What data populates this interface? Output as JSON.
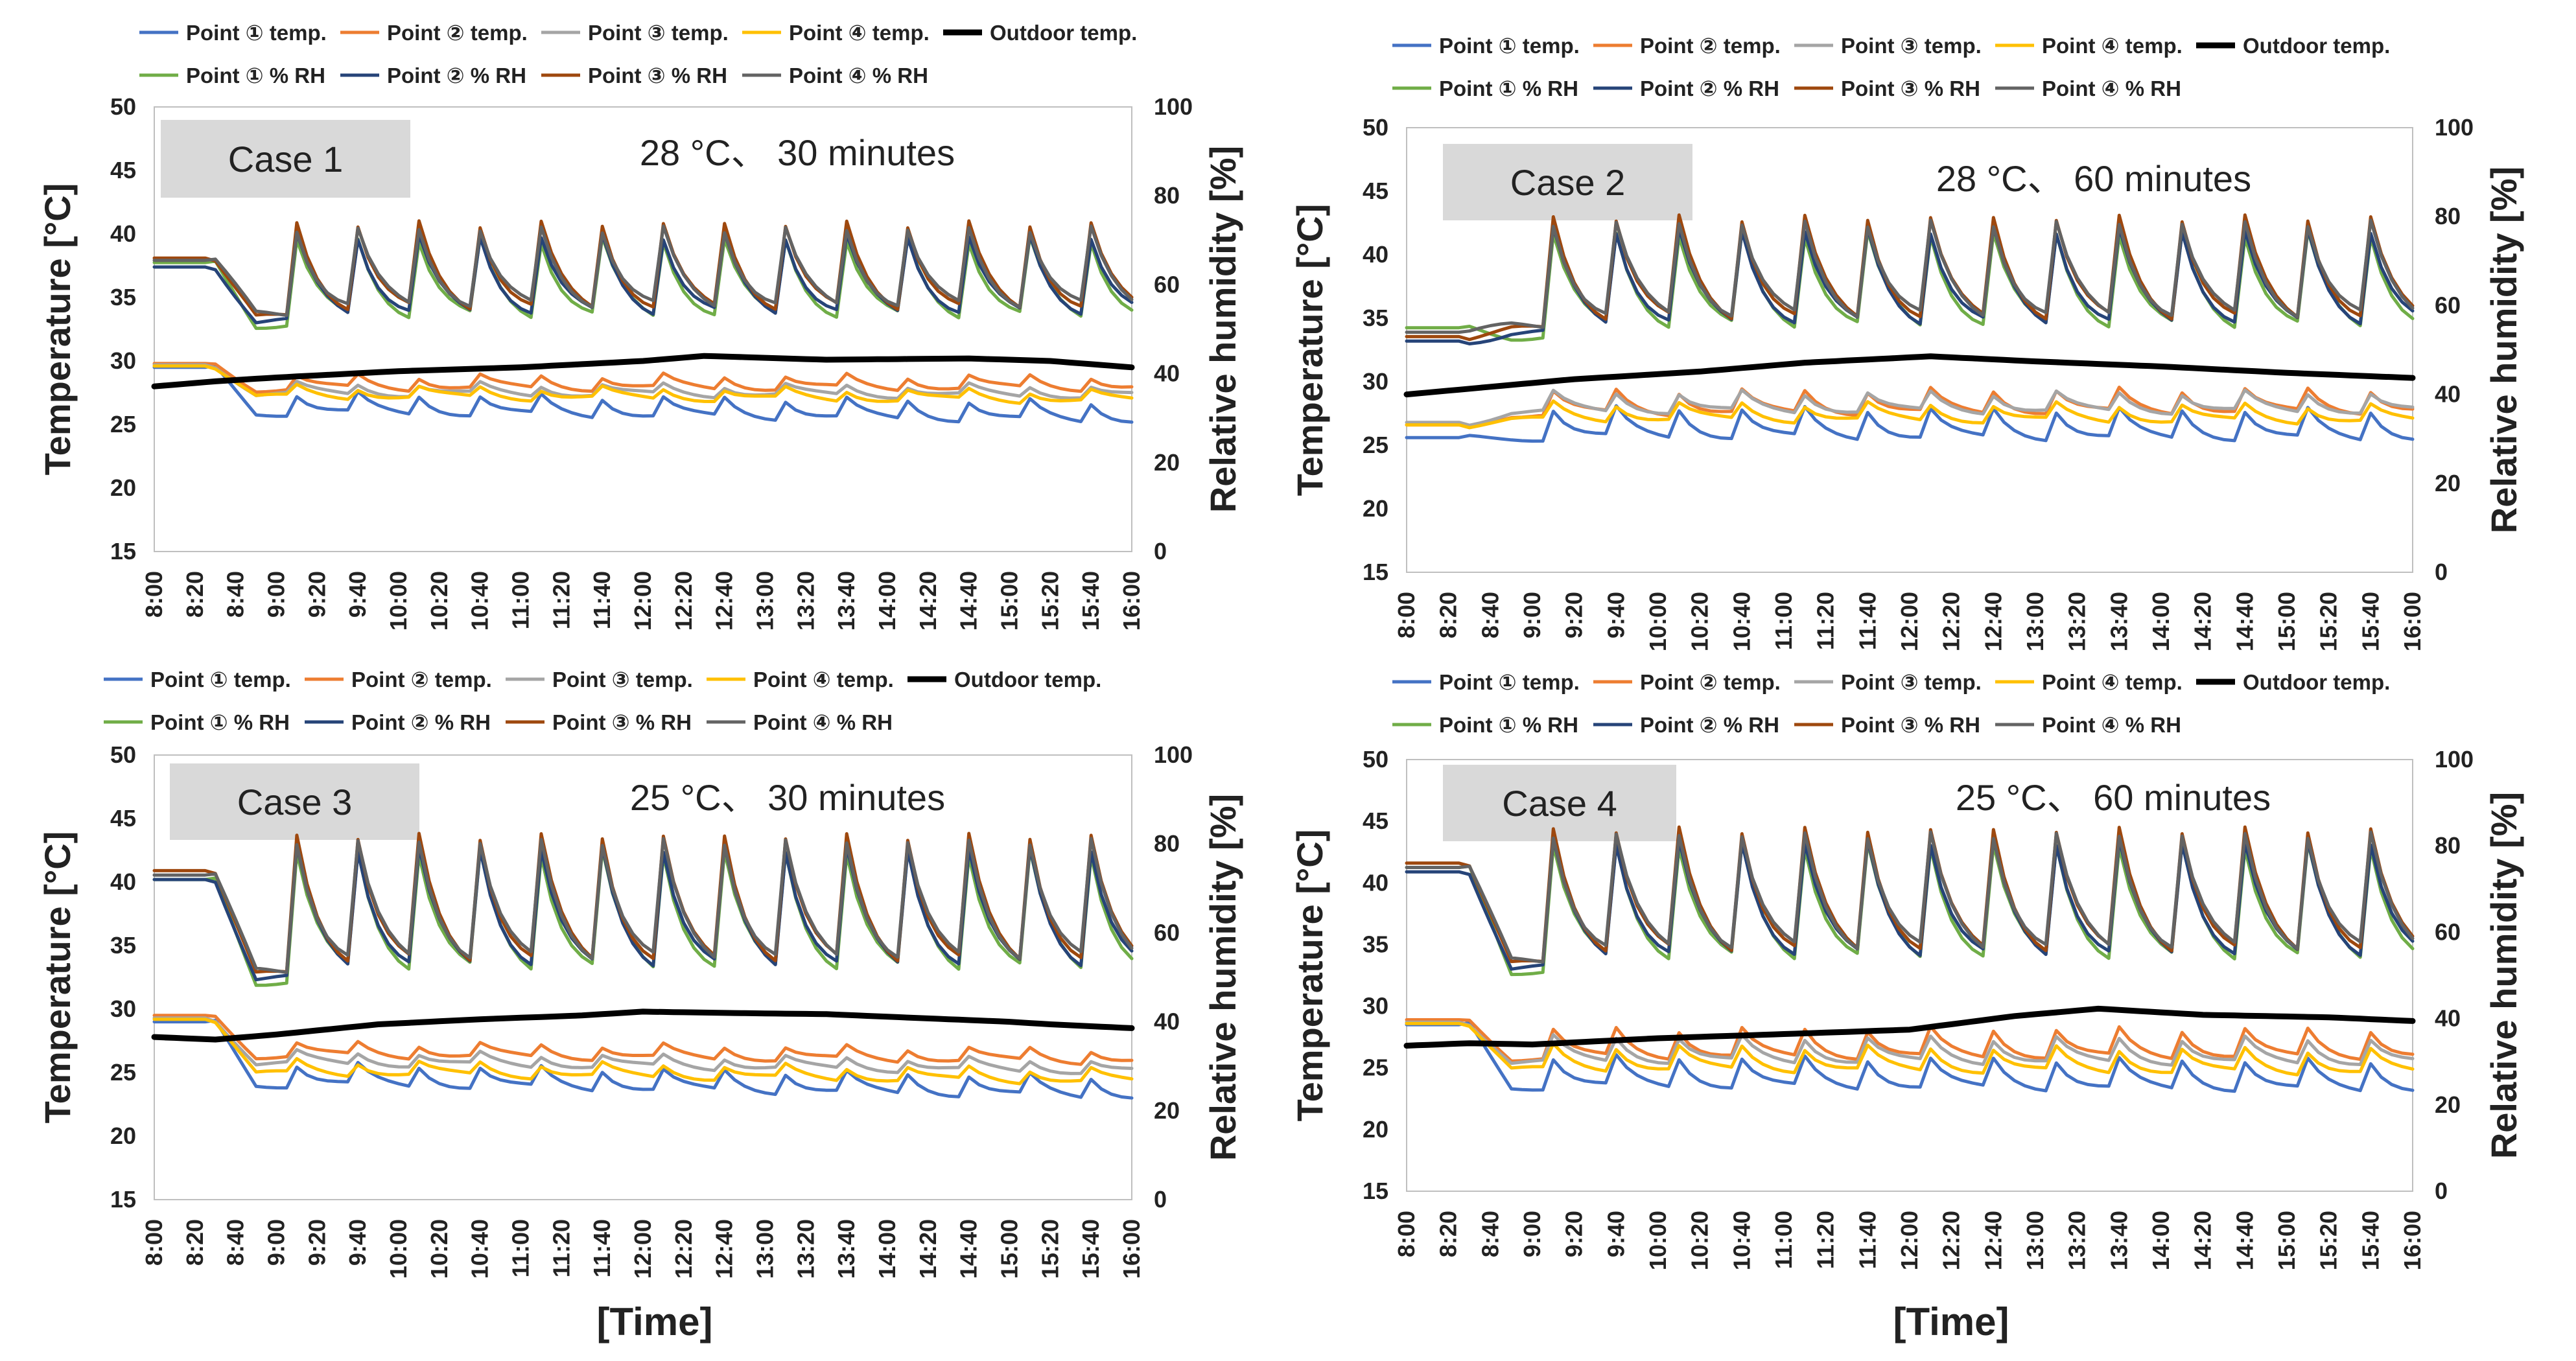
{
  "figure": {
    "shared_xlabel": "[Time]"
  },
  "legend_labels": {
    "p1_temp": "Point ① temp.",
    "p2_temp": "Point ② temp.",
    "p3_temp": "Point ③ temp.",
    "p4_temp": "Point ④ temp.",
    "outdoor": "Outdoor temp.",
    "p1_rh": "Point ① % RH",
    "p2_rh": "Point ② % RH",
    "p3_rh": "Point ③ % RH",
    "p4_rh": "Point ④ % RH"
  },
  "series_colors": {
    "p1_temp": "#4472C4",
    "p2_temp": "#ED7D31",
    "p3_temp": "#A5A5A5",
    "p4_temp": "#FFC000",
    "outdoor": "#000000",
    "p1_rh": "#70AD47",
    "p2_rh": "#264478",
    "p3_rh": "#9E480E",
    "p4_rh": "#636363"
  },
  "chart_data": [
    {
      "type": "line",
      "case_label": "Case 1",
      "condition": "28 °C、 30 minutes",
      "ylabel": "Temperature [°C]",
      "y2label": "Relative humidity [%]",
      "ylim": [
        15,
        50
      ],
      "y2lim": [
        0,
        100
      ],
      "yticks": [
        15,
        20,
        25,
        30,
        35,
        40,
        45,
        50
      ],
      "y2ticks": [
        0,
        20,
        40,
        60,
        80,
        100
      ],
      "xticks": [
        "8:00",
        "8:20",
        "8:40",
        "9:00",
        "9:20",
        "9:40",
        "10:00",
        "10:20",
        "10:40",
        "11:00",
        "11:20",
        "11:40",
        "12:00",
        "12:20",
        "12:40",
        "13:00",
        "13:20",
        "13:40",
        "14:00",
        "14:20",
        "14:40",
        "15:00",
        "15:20",
        "15:40",
        "16:00"
      ],
      "heating": {
        "base_temps": [
          26.0,
          27.8,
          27.4,
          27.2
        ],
        "peak_offsets": [
          1.5,
          1.0,
          0.8,
          0.8
        ],
        "late_temp_shift": [
          -0.8,
          0.0,
          -0.2,
          -0.4
        ],
        "rh_base": 51,
        "rh_peak": 70,
        "peak_spacing_min": 30,
        "first_peak_min": 70
      },
      "series": [
        {
          "name": "Outdoor temp.",
          "axis": "temp",
          "anchors": [
            [
              0,
              28.0
            ],
            [
              30,
              28.4
            ],
            [
              60,
              28.7
            ],
            [
              120,
              29.2
            ],
            [
              180,
              29.5
            ],
            [
              240,
              30.0
            ],
            [
              270,
              30.4
            ],
            [
              330,
              30.1
            ],
            [
              400,
              30.2
            ],
            [
              440,
              30.0
            ],
            [
              480,
              29.5
            ]
          ]
        },
        {
          "name": "Point ① temp.",
          "axis": "temp",
          "start": 29.5
        },
        {
          "name": "Point ② temp.",
          "axis": "temp",
          "start": 29.8
        },
        {
          "name": "Point ③ temp.",
          "axis": "temp",
          "start": 29.7
        },
        {
          "name": "Point ④ temp.",
          "axis": "temp",
          "start": 29.6
        },
        {
          "name": "Point ① % RH",
          "axis": "rh",
          "start": 65
        },
        {
          "name": "Point ② % RH",
          "axis": "rh",
          "start": 64
        },
        {
          "name": "Point ③ % RH",
          "axis": "rh",
          "start": 66
        },
        {
          "name": "Point ④ % RH",
          "axis": "rh",
          "start": 65.5
        }
      ]
    },
    {
      "type": "line",
      "case_label": "Case 2",
      "condition": "28 °C、 60 minutes",
      "ylabel": "Temperature [°C]",
      "y2label": "Relative humidity [%]",
      "ylim": [
        15,
        50
      ],
      "y2lim": [
        0,
        100
      ],
      "yticks": [
        15,
        20,
        25,
        30,
        35,
        40,
        45,
        50
      ],
      "y2ticks": [
        0,
        20,
        40,
        60,
        80,
        100
      ],
      "xticks": [
        "8:00",
        "8:20",
        "8:40",
        "9:00",
        "9:20",
        "9:40",
        "10:00",
        "10:20",
        "10:40",
        "11:00",
        "11:20",
        "11:40",
        "12:00",
        "12:20",
        "12:40",
        "13:00",
        "13:20",
        "13:40",
        "14:00",
        "14:20",
        "14:40",
        "15:00",
        "15:20",
        "15:40",
        "16:00"
      ],
      "heating": {
        "base_temps": [
          25.6,
          27.4,
          27.6,
          27.0
        ],
        "peak_offsets": [
          2.3,
          1.8,
          1.5,
          1.3
        ],
        "late_temp_shift": [
          -0.2,
          0.2,
          0.0,
          -0.2
        ],
        "rh_base": 53,
        "rh_peak": 76,
        "peak_spacing_min": 30,
        "first_peak_min": 70
      },
      "series": [
        {
          "name": "Outdoor temp.",
          "axis": "temp",
          "anchors": [
            [
              0,
              29.0
            ],
            [
              40,
              29.6
            ],
            [
              80,
              30.2
            ],
            [
              140,
              30.8
            ],
            [
              190,
              31.5
            ],
            [
              250,
              32.0
            ],
            [
              300,
              31.6
            ],
            [
              360,
              31.2
            ],
            [
              420,
              30.7
            ],
            [
              480,
              30.3
            ]
          ]
        },
        {
          "name": "Point ① temp.",
          "axis": "temp",
          "start": 25.6
        },
        {
          "name": "Point ② temp.",
          "axis": "temp",
          "start": 26.6
        },
        {
          "name": "Point ③ temp.",
          "axis": "temp",
          "start": 26.8
        },
        {
          "name": "Point ④ temp.",
          "axis": "temp",
          "start": 26.6
        },
        {
          "name": "Point ① % RH",
          "axis": "rh",
          "start": 55
        },
        {
          "name": "Point ② % RH",
          "axis": "rh",
          "start": 52
        },
        {
          "name": "Point ③ % RH",
          "axis": "rh",
          "start": 53
        },
        {
          "name": "Point ④ % RH",
          "axis": "rh",
          "start": 54
        }
      ]
    },
    {
      "type": "line",
      "case_label": "Case 3",
      "condition": "25 °C、 30 minutes",
      "ylabel": "Temperature [°C]",
      "y2label": "Relative humidity [%]",
      "ylim": [
        15,
        50
      ],
      "y2lim": [
        0,
        100
      ],
      "yticks": [
        15,
        20,
        25,
        30,
        35,
        40,
        45,
        50
      ],
      "y2ticks": [
        0,
        20,
        40,
        60,
        80,
        100
      ],
      "xticks": [
        "8:00",
        "8:20",
        "8:40",
        "9:00",
        "9:20",
        "9:40",
        "10:00",
        "10:20",
        "10:40",
        "11:00",
        "11:20",
        "11:40",
        "12:00",
        "12:20",
        "12:40",
        "13:00",
        "13:20",
        "13:40",
        "14:00",
        "14:20",
        "14:40",
        "15:00",
        "15:20",
        "15:40",
        "16:00"
      ],
      "heating": {
        "base_temps": [
          24.2,
          26.4,
          25.8,
          25.0
        ],
        "peak_offsets": [
          1.6,
          1.0,
          0.9,
          1.0
        ],
        "late_temp_shift": [
          -1.2,
          -0.6,
          -0.8,
          -0.8
        ],
        "rh_base": 49,
        "rh_peak": 78,
        "peak_spacing_min": 30,
        "first_peak_min": 70
      },
      "series": [
        {
          "name": "Outdoor temp.",
          "axis": "temp",
          "anchors": [
            [
              0,
              27.8
            ],
            [
              30,
              27.6
            ],
            [
              60,
              28.0
            ],
            [
              110,
              28.8
            ],
            [
              160,
              29.2
            ],
            [
              210,
              29.5
            ],
            [
              240,
              29.8
            ],
            [
              280,
              29.7
            ],
            [
              330,
              29.6
            ],
            [
              420,
              29.0
            ],
            [
              440,
              28.8
            ],
            [
              480,
              28.5
            ]
          ]
        },
        {
          "name": "Point ① temp.",
          "axis": "temp",
          "start": 29.0
        },
        {
          "name": "Point ② temp.",
          "axis": "temp",
          "start": 29.5
        },
        {
          "name": "Point ③ temp.",
          "axis": "temp",
          "start": 29.3
        },
        {
          "name": "Point ④ temp.",
          "axis": "temp",
          "start": 29.2
        },
        {
          "name": "Point ① % RH",
          "axis": "rh",
          "start": 72
        },
        {
          "name": "Point ② % RH",
          "axis": "rh",
          "start": 72
        },
        {
          "name": "Point ③ % RH",
          "axis": "rh",
          "start": 74
        },
        {
          "name": "Point ④ % RH",
          "axis": "rh",
          "start": 73
        }
      ]
    },
    {
      "type": "line",
      "case_label": "Case 4",
      "condition": "25 °C、 60 minutes",
      "ylabel": "Temperature [°C]",
      "y2label": "Relative humidity [%]",
      "ylim": [
        15,
        50
      ],
      "y2lim": [
        0,
        100
      ],
      "yticks": [
        15,
        20,
        25,
        30,
        35,
        40,
        45,
        50
      ],
      "y2ticks": [
        0,
        20,
        40,
        60,
        80,
        100
      ],
      "xticks": [
        "8:00",
        "8:20",
        "8:40",
        "9:00",
        "9:20",
        "9:40",
        "10:00",
        "10:20",
        "10:40",
        "11:00",
        "11:20",
        "11:40",
        "12:00",
        "12:20",
        "12:40",
        "13:00",
        "13:20",
        "13:40",
        "14:00",
        "14:20",
        "14:40",
        "15:00",
        "15:20",
        "15:40",
        "16:00"
      ],
      "heating": {
        "base_temps": [
          23.5,
          25.8,
          25.5,
          24.9
        ],
        "peak_offsets": [
          2.4,
          2.3,
          2.0,
          1.9
        ],
        "late_temp_shift": [
          -0.4,
          0.0,
          -0.2,
          -0.4
        ],
        "rh_base": 51,
        "rh_peak": 80,
        "peak_spacing_min": 30,
        "first_peak_min": 70
      },
      "series": [
        {
          "name": "Outdoor temp.",
          "axis": "temp",
          "anchors": [
            [
              0,
              26.8
            ],
            [
              30,
              27.0
            ],
            [
              60,
              26.9
            ],
            [
              120,
              27.4
            ],
            [
              190,
              27.8
            ],
            [
              240,
              28.1
            ],
            [
              290,
              29.2
            ],
            [
              330,
              29.8
            ],
            [
              380,
              29.3
            ],
            [
              440,
              29.1
            ],
            [
              480,
              28.8
            ]
          ]
        },
        {
          "name": "Point ① temp.",
          "axis": "temp",
          "start": 28.5
        },
        {
          "name": "Point ② temp.",
          "axis": "temp",
          "start": 28.9
        },
        {
          "name": "Point ③ temp.",
          "axis": "temp",
          "start": 28.7
        },
        {
          "name": "Point ④ temp.",
          "axis": "temp",
          "start": 28.6
        },
        {
          "name": "Point ① % RH",
          "axis": "rh",
          "start": 75
        },
        {
          "name": "Point ② % RH",
          "axis": "rh",
          "start": 74
        },
        {
          "name": "Point ③ % RH",
          "axis": "rh",
          "start": 76
        },
        {
          "name": "Point ④ % RH",
          "axis": "rh",
          "start": 75
        }
      ]
    }
  ]
}
